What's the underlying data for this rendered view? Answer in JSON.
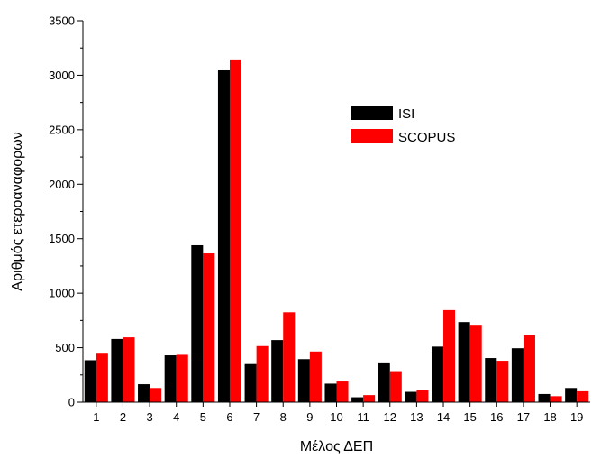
{
  "chart_data": {
    "type": "bar",
    "title": "",
    "xlabel": "Μέλος ΔΕΠ",
    "ylabel": "Αριθμός ετεροαναφορων",
    "ylim": [
      0,
      3500
    ],
    "yticks": [
      0,
      500,
      1000,
      1500,
      2000,
      2500,
      3000,
      3500
    ],
    "categories": [
      "1",
      "2",
      "3",
      "4",
      "5",
      "6",
      "7",
      "8",
      "9",
      "10",
      "11",
      "12",
      "13",
      "14",
      "15",
      "16",
      "17",
      "18",
      "19"
    ],
    "series": [
      {
        "name": "ISI",
        "color": "#000000",
        "values": [
          385,
          580,
          165,
          430,
          1440,
          3045,
          350,
          570,
          395,
          170,
          45,
          365,
          95,
          510,
          735,
          405,
          495,
          75,
          130
        ]
      },
      {
        "name": "SCOPUS",
        "color": "#ff0000",
        "values": [
          445,
          595,
          130,
          435,
          1365,
          3145,
          515,
          825,
          465,
          190,
          65,
          285,
          110,
          845,
          710,
          380,
          615,
          55,
          100
        ]
      }
    ],
    "legend_position": "upper-right",
    "grid": false
  }
}
